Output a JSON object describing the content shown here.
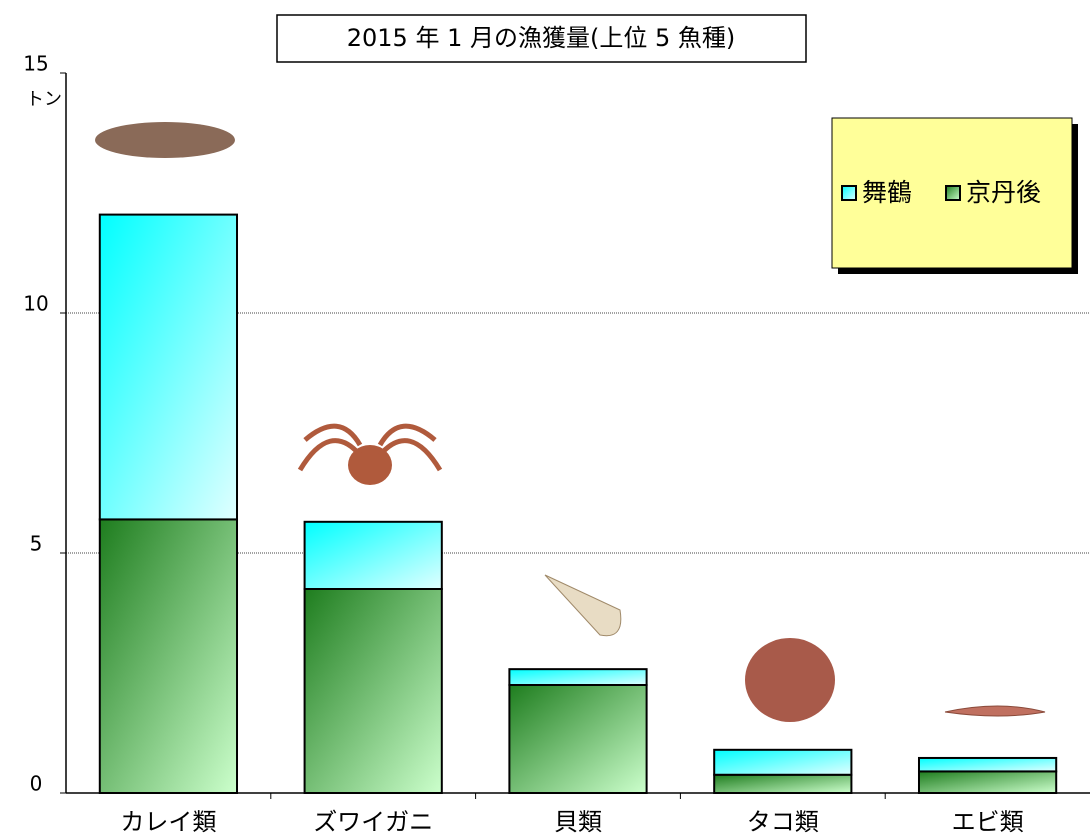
{
  "chart_data": {
    "type": "stacked_bar",
    "title": "2015 年 1 月の漁獲量(上位 5 魚種)",
    "y_label": "トン",
    "categories": [
      "カレイ類",
      "ズワイガニ",
      "貝類",
      "タコ類",
      "エビ類"
    ],
    "series": [
      {
        "name": "京丹後",
        "color": "#1e7d1e",
        "values": [
          5.7,
          4.25,
          2.25,
          0.38,
          0.45
        ]
      },
      {
        "name": "舞鶴",
        "color": "#00ffff",
        "values": [
          6.35,
          1.4,
          0.33,
          0.52,
          0.28
        ]
      }
    ],
    "ylim": [
      0,
      15
    ],
    "yticks": [
      0,
      5,
      10,
      15
    ],
    "grid": true,
    "legend": "upper-right"
  }
}
